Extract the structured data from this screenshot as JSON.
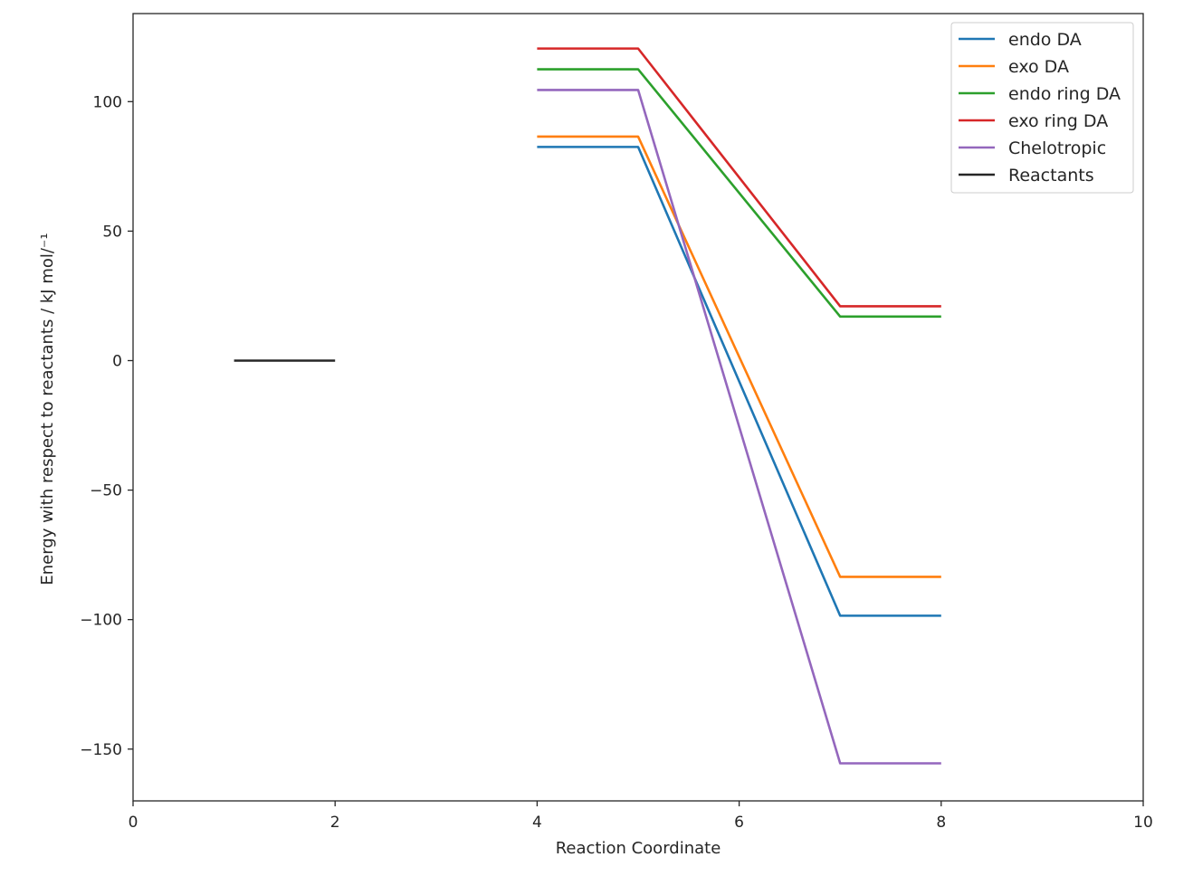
{
  "chart_data": {
    "type": "line",
    "title": "",
    "xlabel": "Reaction Coordinate",
    "ylabel": "Energy with respect to reactants / kJ mol/⁻¹",
    "xlim": [
      0,
      10
    ],
    "ylim": [
      -170,
      134
    ],
    "xticks": [
      0,
      2,
      4,
      6,
      8,
      10
    ],
    "yticks": [
      -150,
      -100,
      -50,
      0,
      50,
      100
    ],
    "xtick_labels": [
      "0",
      "2",
      "4",
      "6",
      "8",
      "10"
    ],
    "ytick_labels": [
      "−150",
      "−100",
      "−50",
      "0",
      "50",
      "100"
    ],
    "grid": false,
    "legend_position": "top-right",
    "series": [
      {
        "name": "endo DA",
        "color": "#1f77b4",
        "points": [
          [
            4,
            82.5
          ],
          [
            5,
            82.5
          ],
          [
            7,
            -98.5
          ],
          [
            8,
            -98.5
          ]
        ]
      },
      {
        "name": "exo DA",
        "color": "#ff7f0e",
        "points": [
          [
            4,
            86.5
          ],
          [
            5,
            86.5
          ],
          [
            7,
            -83.5
          ],
          [
            8,
            -83.5
          ]
        ]
      },
      {
        "name": "endo ring DA",
        "color": "#2ca02c",
        "points": [
          [
            4,
            112.5
          ],
          [
            5,
            112.5
          ],
          [
            7,
            17
          ],
          [
            8,
            17
          ]
        ]
      },
      {
        "name": "exo ring DA",
        "color": "#d62728",
        "points": [
          [
            4,
            120.5
          ],
          [
            5,
            120.5
          ],
          [
            7,
            21
          ],
          [
            8,
            21
          ]
        ]
      },
      {
        "name": "Chelotropic",
        "color": "#9467bd",
        "points": [
          [
            4,
            104.5
          ],
          [
            5,
            104.5
          ],
          [
            7,
            -155.5
          ],
          [
            8,
            -155.5
          ]
        ]
      },
      {
        "name": "Reactants",
        "color": "#262626",
        "points": [
          [
            1,
            0
          ],
          [
            2,
            0
          ]
        ]
      }
    ]
  }
}
